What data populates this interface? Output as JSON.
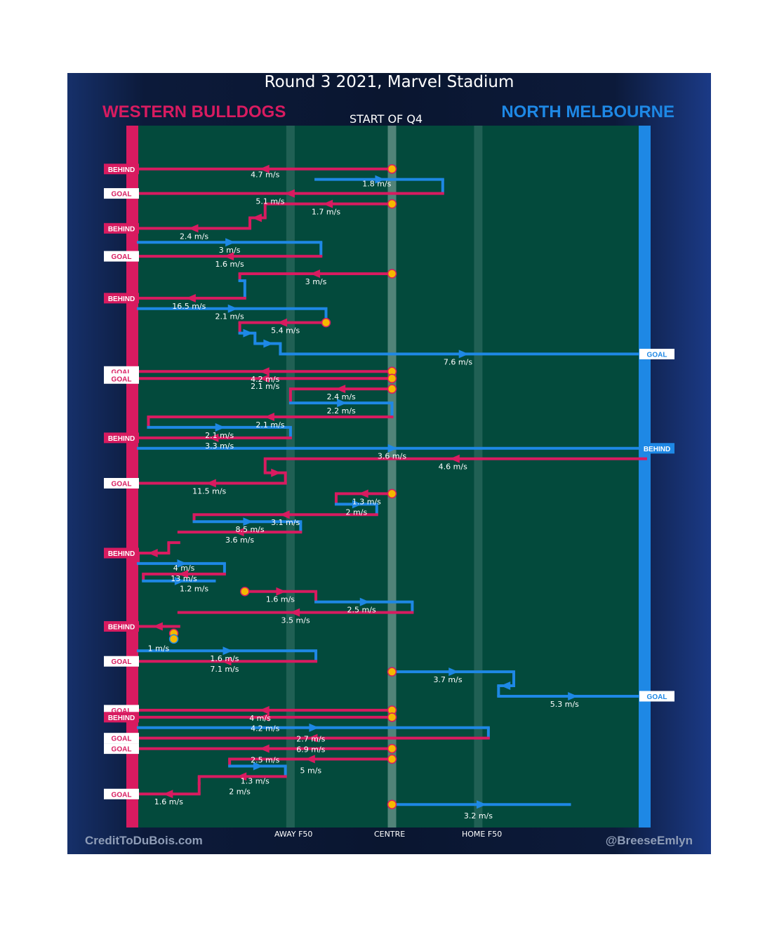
{
  "header": {
    "title": "Round 3 2021, Marvel Stadium",
    "home_team": "WESTERN BULLDOGS",
    "away_team": "NORTH MELBOURNE",
    "quarter_label": "START OF Q4"
  },
  "footer": {
    "credit": "CreditToDuBois.com",
    "handle": "@BreeseEmlyn"
  },
  "chart_data": {
    "type": "line",
    "title": "Round 3 2021, Marvel Stadium",
    "subtitle": "START OF Q4",
    "x_axis_ticks": [
      "AWAY F50",
      "CENTRE",
      "HOME F50"
    ],
    "x_axis_ticks_pos": [
      0.3,
      0.5,
      0.67
    ],
    "colors": {
      "western_bulldogs": "#d81b60",
      "north_melbourne": "#1e88e5",
      "ground": "#034a3c",
      "start_marker": "#f5b800"
    },
    "chains": [
      {
        "rows": [
          5
        ],
        "segs": [
          [
            0.5,
            0,
            "W"
          ]
        ],
        "start": true,
        "end": {
          "label": "BEHIND",
          "side": "L"
        },
        "speeds": [
          {
            "t": "4.7 m/s",
            "x": 0.25,
            "r": 5.8
          }
        ]
      },
      {
        "rows": [
          6.5,
          8.5
        ],
        "segs": [
          [
            0.35,
            0.6,
            "N"
          ],
          [
            0.6,
            0,
            "W"
          ]
        ],
        "end": {
          "label": "GOAL",
          "side": "L"
        },
        "speeds": [
          {
            "t": "1.8 m/s",
            "x": 0.47,
            "r": 7.1
          },
          {
            "t": "5.1 m/s",
            "x": 0.26,
            "r": 9.6
          }
        ]
      },
      {
        "rows": [
          10,
          12,
          13.5
        ],
        "segs": [
          [
            0.5,
            0.25,
            "W"
          ],
          [
            0.25,
            0.22,
            "W"
          ],
          [
            0.22,
            0,
            "W"
          ]
        ],
        "start": true,
        "end": {
          "label": "BEHIND",
          "side": "L"
        },
        "speeds": [
          {
            "t": "1.7 m/s",
            "x": 0.37,
            "r": 11.1
          },
          {
            "t": "2.4 m/s",
            "x": 0.11,
            "r": 14.6
          }
        ]
      },
      {
        "rows": [
          15.5,
          17.5
        ],
        "segs": [
          [
            0,
            0.36,
            "N"
          ],
          [
            0.36,
            0,
            "W"
          ]
        ],
        "end": {
          "label": "GOAL",
          "side": "L"
        },
        "speeds": [
          {
            "t": "3 m/s",
            "x": 0.18,
            "r": 16.6
          },
          {
            "t": "1.6 m/s",
            "x": 0.18,
            "r": 18.6
          }
        ]
      },
      {
        "rows": [
          20,
          21,
          23.5
        ],
        "segs": [
          [
            0.5,
            0.2,
            "W"
          ],
          [
            0.2,
            0.21,
            "N"
          ],
          [
            0.21,
            0,
            "W"
          ]
        ],
        "start": true,
        "end": {
          "label": "BEHIND",
          "side": "L"
        },
        "speeds": [
          {
            "t": "3 m/s",
            "x": 0.35,
            "r": 21.1
          },
          {
            "t": "16.5 m/s",
            "x": 0.1,
            "r": 24.6
          }
        ]
      },
      {
        "rows": [
          25,
          27,
          28.5,
          30,
          31.5
        ],
        "segs": [
          [
            0,
            0.37,
            "N"
          ],
          [
            0.37,
            0.2,
            "W"
          ],
          [
            0.2,
            0.23,
            "N"
          ],
          [
            0.23,
            0.28,
            "N"
          ],
          [
            0.28,
            1,
            "N"
          ]
        ],
        "start_at": [
          0.37,
          27
        ],
        "end": {
          "label": "GOAL",
          "side": "R"
        },
        "speeds": [
          {
            "t": "2.1 m/s",
            "x": 0.18,
            "r": 26.1
          },
          {
            "t": "5.4 m/s",
            "x": 0.29,
            "r": 28.1
          },
          {
            "t": "7.6 m/s",
            "x": 0.63,
            "r": 32.6
          }
        ]
      },
      {
        "rows": [
          34
        ],
        "segs": [
          [
            0.5,
            0,
            "W"
          ]
        ],
        "start": true,
        "end": {
          "label": "GOAL",
          "side": "L"
        },
        "speeds": [
          {
            "t": "4.2 m/s",
            "x": 0.25,
            "r": 35.1
          }
        ]
      },
      {
        "rows": [
          35
        ],
        "segs": [
          [
            0.5,
            0,
            "W"
          ]
        ],
        "start": true,
        "end": {
          "label": "GOAL",
          "side": "L"
        },
        "speeds": [
          {
            "t": "2.1 m/s",
            "x": 0.25,
            "r": 36.1
          }
        ]
      },
      {
        "rows": [
          36.5,
          38.5,
          40.5,
          42,
          43.5
        ],
        "segs": [
          [
            0.5,
            0.3,
            "W"
          ],
          [
            0.3,
            0.5,
            "N"
          ],
          [
            0.5,
            0.02,
            "W"
          ],
          [
            0.02,
            0.3,
            "N"
          ],
          [
            0.3,
            0,
            "W"
          ]
        ],
        "start": true,
        "end": {
          "label": "BEHIND",
          "side": "L"
        },
        "speeds": [
          {
            "t": "2.4 m/s",
            "x": 0.4,
            "r": 37.6
          },
          {
            "t": "2.2 m/s",
            "x": 0.4,
            "r": 39.6
          },
          {
            "t": "2.1 m/s",
            "x": 0.26,
            "r": 41.6
          },
          {
            "t": "2.1 m/s",
            "x": 0.16,
            "r": 43.1
          },
          {
            "t": "3.3 m/s",
            "x": 0.16,
            "r": 44.6
          }
        ]
      },
      {
        "rows": [
          45
        ],
        "segs": [
          [
            0,
            1,
            "N"
          ]
        ],
        "end": {
          "label": "BEHIND",
          "side": "R"
        },
        "speeds": [
          {
            "t": "3.6 m/s",
            "x": 0.5,
            "r": 46.1
          }
        ]
      },
      {
        "rows": [
          46.5,
          48.5,
          50
        ],
        "segs": [
          [
            1,
            0.25,
            "W"
          ],
          [
            0.25,
            0.29,
            "W"
          ],
          [
            0.29,
            0,
            "W"
          ]
        ],
        "end": {
          "label": "GOAL",
          "side": "L"
        },
        "speeds": [
          {
            "t": "4.6 m/s",
            "x": 0.62,
            "r": 47.6
          },
          {
            "t": "11.5 m/s",
            "x": 0.14,
            "r": 51.1
          }
        ]
      },
      {
        "rows": [
          51.5,
          53,
          54.5,
          55.5,
          57
        ],
        "segs": [
          [
            0.5,
            0.39,
            "W"
          ],
          [
            0.39,
            0.47,
            "N"
          ],
          [
            0.47,
            0.11,
            "W"
          ],
          [
            0.11,
            0.32,
            "N"
          ],
          [
            0.32,
            0.08,
            "W"
          ]
        ],
        "start": true,
        "speeds": [
          {
            "t": "1.3 m/s",
            "x": 0.45,
            "r": 52.6
          },
          {
            "t": "2 m/s",
            "x": 0.43,
            "r": 54.1
          },
          {
            "t": "3.1 m/s",
            "x": 0.29,
            "r": 55.6
          },
          {
            "t": "8.5 m/s",
            "x": 0.22,
            "r": 56.6
          },
          {
            "t": "3.6 m/s",
            "x": 0.2,
            "r": 58.1
          }
        ]
      },
      {
        "rows": [
          58.5,
          60,
          61.5,
          63,
          64
        ],
        "segs": [
          [
            0.08,
            0.06,
            "W"
          ],
          [
            0.06,
            0,
            "W"
          ],
          [
            0,
            0.17,
            "N"
          ],
          [
            0.17,
            0.01,
            "W"
          ],
          [
            0.01,
            0.15,
            "N"
          ]
        ],
        "end_mid": {
          "label": "BEHIND",
          "side": "L",
          "row": 60
        },
        "speeds": [
          {
            "t": "4 m/s",
            "x": 0.09,
            "r": 62.1
          },
          {
            "t": "13 m/s",
            "x": 0.09,
            "r": 63.6
          },
          {
            "t": "1.2 m/s",
            "x": 0.11,
            "r": 65.1
          }
        ]
      },
      {
        "rows": [
          65.5,
          67,
          68.5
        ],
        "segs": [
          [
            0.21,
            0.35,
            "W"
          ],
          [
            0.35,
            0.54,
            "N"
          ],
          [
            0.54,
            0.08,
            "W"
          ]
        ],
        "start_at": [
          0.21,
          65.5
        ],
        "speeds": [
          {
            "t": "1.6 m/s",
            "x": 0.28,
            "r": 66.6
          },
          {
            "t": "2.5 m/s",
            "x": 0.44,
            "r": 68.1
          },
          {
            "t": "3.5 m/s",
            "x": 0.31,
            "r": 69.6
          }
        ]
      },
      {
        "rows": [
          70.5,
          72.5
        ],
        "segs": [
          [
            0.08,
            0,
            "W"
          ]
        ],
        "start_at": [
          0.07,
          71.5
        ],
        "extra_start": [
          0.07,
          72.3
        ],
        "end": {
          "label": "BEHIND",
          "side": "L"
        },
        "speeds": [
          {
            "t": "1 m/s",
            "x": 0.04,
            "r": 73.6
          }
        ]
      },
      {
        "rows": [
          74,
          75.5
        ],
        "segs": [
          [
            0,
            0.35,
            "N"
          ],
          [
            0.35,
            0,
            "W"
          ]
        ],
        "end": {
          "label": "GOAL",
          "side": "L"
        },
        "speeds": [
          {
            "t": "1.6 m/s",
            "x": 0.17,
            "r": 75.1
          },
          {
            "t": "7.1 m/s",
            "x": 0.17,
            "r": 76.6
          }
        ]
      },
      {
        "rows": [
          77,
          79,
          80.5
        ],
        "segs": [
          [
            0.5,
            0.74,
            "N"
          ],
          [
            0.74,
            0.71,
            "N"
          ],
          [
            0.71,
            1,
            "N"
          ]
        ],
        "start": true,
        "end": {
          "label": "GOAL",
          "side": "R"
        },
        "speeds": [
          {
            "t": "3.7 m/s",
            "x": 0.61,
            "r": 78.1
          },
          {
            "t": "5.3 m/s",
            "x": 0.84,
            "r": 81.6
          }
        ]
      },
      {
        "rows": [
          82.5
        ],
        "segs": [
          [
            0.5,
            0,
            "W"
          ]
        ],
        "start": true,
        "end": {
          "label": "GOAL",
          "side": "L"
        },
        "speeds": [
          {
            "t": "4 m/s",
            "x": 0.24,
            "r": 83.6
          }
        ]
      },
      {
        "rows": [
          83.5
        ],
        "segs": [
          [
            0.5,
            0,
            "W"
          ]
        ],
        "start": true,
        "end": {
          "label": "BEHIND",
          "side": "L"
        },
        "speeds": [
          {
            "t": "4.2 m/s",
            "x": 0.25,
            "r": 85.1
          }
        ]
      },
      {
        "rows": [
          85,
          86.5
        ],
        "segs": [
          [
            0,
            0.69,
            "N"
          ],
          [
            0.69,
            0,
            "W"
          ]
        ],
        "end": {
          "label": "GOAL",
          "side": "L"
        },
        "speeds": [
          {
            "t": "2.7 m/s",
            "x": 0.34,
            "r": 86.6
          },
          {
            "t": "6.9 m/s",
            "x": 0.34,
            "r": 88.1
          }
        ]
      },
      {
        "rows": [
          88
        ],
        "segs": [
          [
            0.5,
            0,
            "W"
          ]
        ],
        "start": true,
        "end": {
          "label": "GOAL",
          "side": "L"
        },
        "speeds": [
          {
            "t": "2.5 m/s",
            "x": 0.25,
            "r": 89.6
          }
        ]
      },
      {
        "rows": [
          89.5,
          90.5,
          92,
          93,
          94.5
        ],
        "segs": [
          [
            0.5,
            0.18,
            "W"
          ],
          [
            0.18,
            0.29,
            "N"
          ],
          [
            0.29,
            0.12,
            "W"
          ],
          [
            0.12,
            0.12,
            "W"
          ],
          [
            0.12,
            0,
            "W"
          ]
        ],
        "start": true,
        "end": {
          "label": "GOAL",
          "side": "L"
        },
        "speeds": [
          {
            "t": "5 m/s",
            "x": 0.34,
            "r": 91.1
          },
          {
            "t": "1.3 m/s",
            "x": 0.23,
            "r": 92.6
          },
          {
            "t": "2 m/s",
            "x": 0.2,
            "r": 94.1
          },
          {
            "t": "1.6 m/s",
            "x": 0.06,
            "r": 95.6
          }
        ]
      },
      {
        "rows": [
          96,
          98.5
        ],
        "segs": [
          [
            0.5,
            0.85,
            "N"
          ]
        ],
        "start": true,
        "speeds": [
          {
            "t": "3.2 m/s",
            "x": 0.67,
            "r": 97.6
          }
        ]
      }
    ]
  }
}
